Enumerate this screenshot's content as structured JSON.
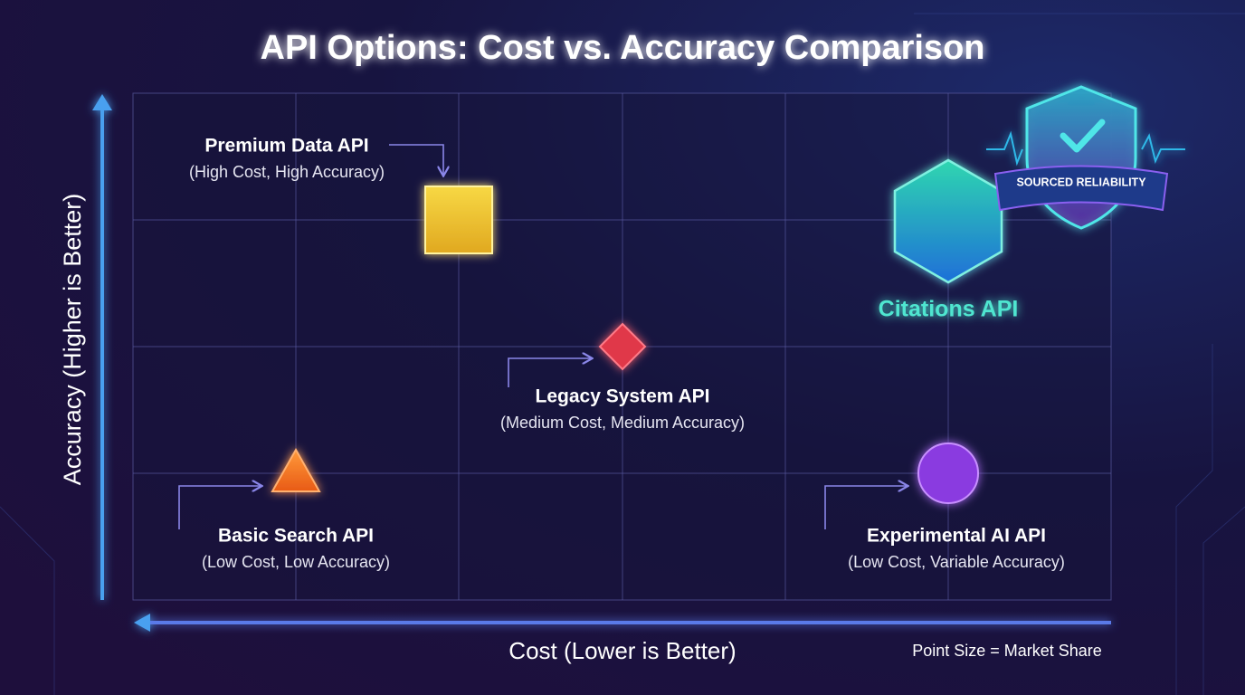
{
  "header": {
    "title": "API Options: Cost vs. Accuracy Comparison"
  },
  "axes": {
    "y_label": "Accuracy (Higher is Better)",
    "x_label": "Cost (Lower is Better)"
  },
  "nodes": [
    {
      "label": "Premium Data API",
      "description": "(High Cost, High Accuracy)"
    },
    {
      "label": "Legacy System API",
      "description": "(Medium Cost, Medium Accuracy)"
    },
    {
      "label": "Basic Search API",
      "description": "(Low Cost, Low Accuracy)"
    },
    {
      "label": "Experimental AI API",
      "description": "(Low Cost, Variable Accuracy)"
    },
    {
      "label": "Citations API"
    }
  ],
  "badge": {
    "text": "SOURCED RELIABILITY"
  },
  "note": "Point Size = Market Share"
}
